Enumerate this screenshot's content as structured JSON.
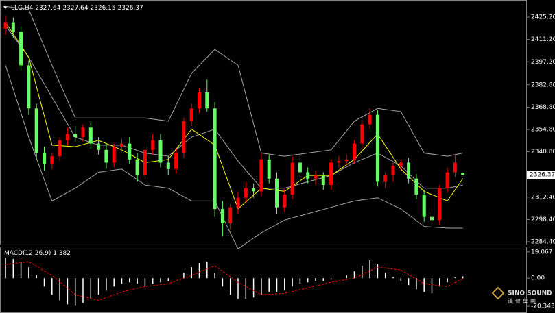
{
  "chart_data": [
    {
      "type": "candlestick",
      "symbol": "LLG,H4",
      "open": [
        2418,
        2422,
        2416,
        2395,
        2368,
        2340,
        2333,
        2338,
        2348,
        2352,
        2350,
        2356,
        2346,
        2342,
        2334,
        2344,
        2346,
        2336,
        2326,
        2342,
        2348,
        2334,
        2330,
        2340,
        2360,
        2368,
        2378,
        2368,
        2305,
        2296,
        2306,
        2312,
        2318,
        2316,
        2336,
        2324,
        2306,
        2314,
        2334,
        2328,
        2324,
        2326,
        2320,
        2334,
        2335,
        2336,
        2346,
        2358,
        2364,
        2322,
        2326,
        2332,
        2334,
        2324,
        2314,
        2300,
        2298,
        2318,
        2328,
        2327.64
      ],
      "high": [
        2426,
        2425,
        2419,
        2398,
        2371,
        2344,
        2340,
        2350,
        2356,
        2357,
        2358,
        2360,
        2350,
        2346,
        2346,
        2349,
        2350,
        2340,
        2344,
        2352,
        2352,
        2338,
        2343,
        2362,
        2371,
        2381,
        2386,
        2372,
        2310,
        2308,
        2316,
        2322,
        2321,
        2340,
        2339,
        2328,
        2318,
        2338,
        2337,
        2331,
        2329,
        2328,
        2336,
        2338,
        2339,
        2348,
        2361,
        2368,
        2367,
        2328,
        2334,
        2336,
        2337,
        2327,
        2317,
        2303,
        2320,
        2331,
        2339,
        2327.64
      ],
      "low": [
        2414,
        2412,
        2392,
        2364,
        2336,
        2329,
        2330,
        2335,
        2345,
        2347,
        2347,
        2343,
        2339,
        2330,
        2331,
        2341,
        2333,
        2322,
        2323,
        2339,
        2331,
        2326,
        2327,
        2337,
        2357,
        2365,
        2366,
        2300,
        2288,
        2292,
        2302,
        2309,
        2312,
        2313,
        2321,
        2302,
        2303,
        2311,
        2325,
        2321,
        2320,
        2317,
        2317,
        2331,
        2332,
        2333,
        2343,
        2355,
        2319,
        2318,
        2322,
        2329,
        2321,
        2311,
        2297,
        2295,
        2295,
        2315,
        2325,
        2326.15
      ],
      "close": [
        2422,
        2416,
        2395,
        2368,
        2340,
        2333,
        2338,
        2348,
        2352,
        2350,
        2356,
        2346,
        2342,
        2334,
        2344,
        2346,
        2336,
        2326,
        2342,
        2348,
        2334,
        2330,
        2340,
        2360,
        2368,
        2378,
        2368,
        2305,
        2296,
        2306,
        2312,
        2318,
        2316,
        2336,
        2324,
        2306,
        2314,
        2334,
        2328,
        2324,
        2326,
        2320,
        2334,
        2335,
        2336,
        2346,
        2358,
        2364,
        2322,
        2326,
        2332,
        2334,
        2324,
        2314,
        2300,
        2298,
        2318,
        2328,
        2334,
        2326.37
      ],
      "up_color": "#ff0000",
      "down_color": "#66ff66",
      "lines": [
        {
          "color": "#a8a8a8",
          "x": [
            0,
            3,
            6,
            9,
            12,
            15,
            18,
            21,
            24,
            27,
            30,
            33,
            36,
            39,
            42,
            45,
            48,
            51,
            54,
            57,
            59
          ],
          "values": [
            2432,
            2430,
            2395,
            2362,
            2362,
            2362,
            2362,
            2360,
            2390,
            2405,
            2395,
            2340,
            2338,
            2340,
            2342,
            2360,
            2368,
            2366,
            2340,
            2338,
            2340
          ]
        },
        {
          "color": "#a8a8a8",
          "x": [
            0,
            3,
            6,
            9,
            12,
            15,
            18,
            21,
            24,
            27,
            30,
            33,
            36,
            39,
            42,
            45,
            48,
            51,
            54,
            57,
            59
          ],
          "values": [
            2420,
            2400,
            2375,
            2350,
            2345,
            2345,
            2340,
            2338,
            2350,
            2355,
            2335,
            2318,
            2318,
            2322,
            2326,
            2334,
            2340,
            2332,
            2318,
            2318,
            2320
          ]
        },
        {
          "color": "#a8a8a8",
          "x": [
            0,
            3,
            6,
            9,
            12,
            15,
            18,
            21,
            24,
            27,
            30,
            33,
            36,
            39,
            42,
            45,
            48,
            51,
            54,
            57,
            59
          ],
          "values": [
            2395,
            2350,
            2310,
            2318,
            2328,
            2330,
            2320,
            2318,
            2310,
            2310,
            2280,
            2290,
            2298,
            2302,
            2306,
            2310,
            2312,
            2305,
            2294,
            2293,
            2293
          ]
        },
        {
          "color": "#ffff00",
          "x": [
            0,
            3,
            6,
            9,
            12,
            15,
            18,
            21,
            24,
            27,
            30,
            33,
            36,
            39,
            42,
            45,
            48,
            51,
            54,
            57,
            59
          ],
          "values": [
            2422,
            2400,
            2345,
            2344,
            2348,
            2342,
            2334,
            2336,
            2355,
            2345,
            2305,
            2318,
            2316,
            2326,
            2326,
            2336,
            2352,
            2330,
            2316,
            2310,
            2324
          ]
        }
      ],
      "ylim": [
        2282.68,
        2434.24
      ],
      "yticks": [
        {
          "value": 2425.2,
          "label": "2425.20"
        },
        {
          "value": 2411.2,
          "label": "2411.20"
        },
        {
          "value": 2397.2,
          "label": "2397.20"
        },
        {
          "value": 2382.8,
          "label": "2382.80"
        },
        {
          "value": 2368.8,
          "label": "2368.80"
        },
        {
          "value": 2354.8,
          "label": "2354.80"
        },
        {
          "value": 2340.8,
          "label": "2340.80"
        },
        {
          "value": 2312.4,
          "label": "2312.40"
        },
        {
          "value": 2298.4,
          "label": "2298.40"
        },
        {
          "value": 2284.4,
          "label": "2284.40"
        }
      ]
    },
    {
      "type": "macd",
      "title": "MACD(12,26,9)",
      "values": [
        15,
        14,
        12,
        8,
        2,
        -6,
        -12,
        -16,
        -19,
        -20,
        -18,
        -15,
        -12,
        -9,
        -6,
        -4,
        -3,
        -4,
        -6,
        -4,
        -3,
        -2,
        0,
        4,
        8,
        11,
        12,
        4,
        -6,
        -12,
        -15,
        -15,
        -14,
        -12,
        -10,
        -10,
        -9,
        -6,
        -4,
        -3,
        -2,
        -2,
        -1,
        0,
        2,
        5,
        9,
        13,
        10,
        4,
        1,
        -2,
        -5,
        -8,
        -10,
        -11,
        -6,
        -3,
        0.5,
        1.382
      ],
      "color": "#ffffff",
      "signal": {
        "color": "#ff0000",
        "x": [
          0,
          3,
          6,
          9,
          12,
          15,
          18,
          21,
          24,
          27,
          30,
          33,
          36,
          39,
          42,
          45,
          48,
          51,
          54,
          57,
          59
        ],
        "values": [
          10,
          12,
          2,
          -12,
          -16,
          -10,
          -6,
          -4,
          2,
          9,
          -3,
          -12,
          -11,
          -7,
          -3,
          0,
          8,
          6,
          -4,
          -6,
          -0.424
        ]
      },
      "ylim": [
        -24.28,
        22.5
      ],
      "yticks": [
        19.067,
        {
          "value": 0,
          "label": "0.00"
        },
        -20.343
      ]
    }
  ],
  "watermark": {
    "brand": "SINO SOUND",
    "sub": "漢聲集團"
  }
}
